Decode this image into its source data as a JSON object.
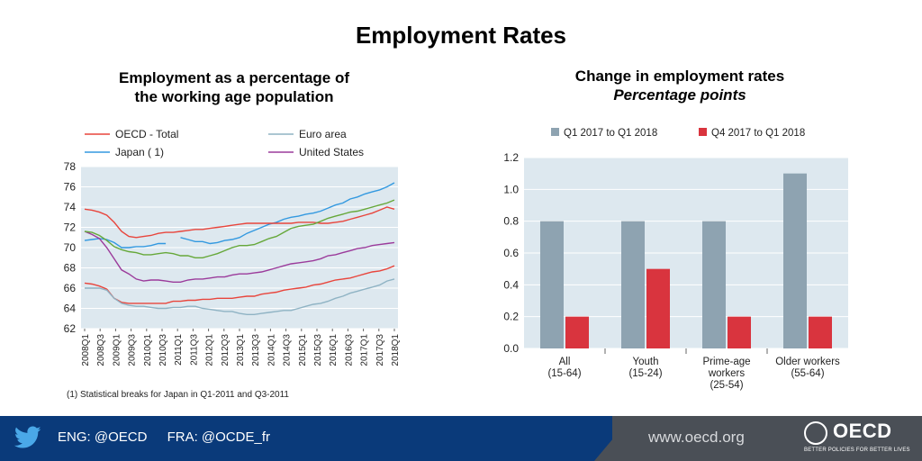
{
  "title": "Employment Rates",
  "left_chart": {
    "title_line1": "Employment as a percentage of",
    "title_line2": "the working age population",
    "footnote": "(1) Statistical breaks for Japan in Q1-2011 and Q3-2011"
  },
  "right_chart": {
    "title": "Change in employment rates",
    "subtitle": "Percentage points"
  },
  "footer": {
    "eng_handle": "ENG: @OECD",
    "fra_handle": "FRA: @OCDE_fr",
    "site": "www.oecd.org",
    "logo_word": "OECD",
    "logo_tagline": "BETTER POLICIES FOR BETTER LIVES"
  },
  "colors": {
    "oecd_total": "#e8453c",
    "euro_area": "#8fb3c4",
    "japan": "#3399e0",
    "united_states": "#9b3b9b",
    "extra_green": "#66a83a",
    "bar_grey": "#8ea3b1",
    "bar_red": "#d9343e",
    "plot_bg": "#dde8ef",
    "footer_blue": "#0a3a7a",
    "footer_grey": "#4a4f56"
  },
  "chart_data": [
    {
      "type": "line",
      "ylim": [
        62,
        78
      ],
      "yticks": [
        62,
        64,
        66,
        68,
        70,
        72,
        74,
        76,
        78
      ],
      "xlabels": [
        "2008Q1",
        "2008Q3",
        "2009Q1",
        "2009Q3",
        "2010Q1",
        "2010Q3",
        "2011Q1",
        "2011Q3",
        "2012Q1",
        "2012Q3",
        "2013Q1",
        "2013Q3",
        "2014Q1",
        "2014Q3",
        "2015Q1",
        "2015Q3",
        "2016Q1",
        "2016Q3",
        "2017Q1",
        "2017Q3",
        "2018Q1"
      ],
      "legend": [
        "OECD - Total",
        "Euro area",
        "Japan ( 1)",
        "United States"
      ],
      "series": [
        {
          "name": "OECD - Total",
          "color": "#e8453c",
          "values": [
            66.5,
            66.4,
            66.2,
            65.9,
            65.0,
            64.6,
            64.5,
            64.5,
            64.5,
            64.5,
            64.5,
            64.5,
            64.7,
            64.7,
            64.8,
            64.8,
            64.9,
            64.9,
            65.0,
            65.0,
            65.0,
            65.1,
            65.2,
            65.2,
            65.4,
            65.5,
            65.6,
            65.8,
            65.9,
            66.0,
            66.1,
            66.3,
            66.4,
            66.6,
            66.8,
            66.9,
            67.0,
            67.2,
            67.4,
            67.6,
            67.7,
            67.9,
            68.2
          ]
        },
        {
          "name": "Euro area",
          "color": "#8fb3c4",
          "values": [
            66.0,
            66.0,
            66.0,
            65.8,
            65.0,
            64.5,
            64.3,
            64.2,
            64.2,
            64.1,
            64.0,
            64.0,
            64.1,
            64.1,
            64.2,
            64.2,
            64.0,
            63.9,
            63.8,
            63.7,
            63.7,
            63.5,
            63.4,
            63.4,
            63.5,
            63.6,
            63.7,
            63.8,
            63.8,
            64.0,
            64.2,
            64.4,
            64.5,
            64.7,
            65.0,
            65.2,
            65.5,
            65.7,
            65.9,
            66.1,
            66.3,
            66.7,
            66.9
          ]
        },
        {
          "name": "Japan ( 1)",
          "color": "#3399e0",
          "values": [
            70.7,
            70.8,
            70.9,
            70.8,
            70.5,
            70.0,
            70.0,
            70.1,
            70.1,
            70.2,
            70.4,
            70.4,
            null,
            71.0,
            70.8,
            70.6,
            70.6,
            70.4,
            70.5,
            70.7,
            70.8,
            71.0,
            71.4,
            71.7,
            72.0,
            72.3,
            72.5,
            72.8,
            73.0,
            73.1,
            73.3,
            73.4,
            73.6,
            73.9,
            74.2,
            74.4,
            74.8,
            75.0,
            75.3,
            75.5,
            75.7,
            76.0,
            76.4
          ]
        },
        {
          "name": "United States",
          "color": "#9b3b9b",
          "values": [
            71.6,
            71.3,
            70.9,
            70.0,
            68.9,
            67.8,
            67.4,
            66.9,
            66.7,
            66.8,
            66.8,
            66.7,
            66.6,
            66.6,
            66.8,
            66.9,
            66.9,
            67.0,
            67.1,
            67.1,
            67.3,
            67.4,
            67.4,
            67.5,
            67.6,
            67.8,
            68.0,
            68.2,
            68.4,
            68.5,
            68.6,
            68.7,
            68.9,
            69.2,
            69.3,
            69.5,
            69.7,
            69.9,
            70.0,
            70.2,
            70.3,
            70.4,
            70.5
          ]
        },
        {
          "color": "#e8453c",
          "values": [
            73.8,
            73.7,
            73.5,
            73.2,
            72.5,
            71.6,
            71.1,
            71.0,
            71.1,
            71.2,
            71.4,
            71.5,
            71.5,
            71.6,
            71.7,
            71.8,
            71.8,
            71.9,
            72.0,
            72.1,
            72.2,
            72.3,
            72.4,
            72.4,
            72.4,
            72.4,
            72.4,
            72.4,
            72.4,
            72.5,
            72.5,
            72.5,
            72.4,
            72.4,
            72.5,
            72.6,
            72.8,
            73.0,
            73.2,
            73.4,
            73.7,
            74.0,
            73.8
          ]
        },
        {
          "color": "#66a83a",
          "values": [
            71.6,
            71.5,
            71.2,
            70.7,
            70.1,
            69.8,
            69.6,
            69.5,
            69.3,
            69.3,
            69.4,
            69.5,
            69.4,
            69.2,
            69.2,
            69.0,
            69.0,
            69.2,
            69.4,
            69.7,
            70.0,
            70.2,
            70.2,
            70.3,
            70.6,
            70.9,
            71.1,
            71.5,
            71.9,
            72.1,
            72.2,
            72.3,
            72.6,
            72.9,
            73.1,
            73.3,
            73.5,
            73.6,
            73.8,
            74.0,
            74.2,
            74.4,
            74.7
          ]
        }
      ]
    },
    {
      "type": "bar",
      "categories": [
        [
          "All",
          "(15-64)"
        ],
        [
          "Youth",
          "(15-24)"
        ],
        [
          "Prime-age",
          "workers",
          "(25-54)"
        ],
        [
          "Older workers",
          "(55-64)"
        ]
      ],
      "ylim": [
        0,
        1.2
      ],
      "yticks": [
        "0.0",
        "0.2",
        "0.4",
        "0.6",
        "0.8",
        "1.0",
        "1.2"
      ],
      "series": [
        {
          "name": "Q1 2017 to Q1 2018",
          "color": "#8ea3b1",
          "values": [
            0.8,
            0.8,
            0.8,
            1.1
          ]
        },
        {
          "name": "Q4 2017 to Q1 2018",
          "color": "#d9343e",
          "values": [
            0.2,
            0.5,
            0.2,
            0.2
          ]
        }
      ]
    }
  ]
}
